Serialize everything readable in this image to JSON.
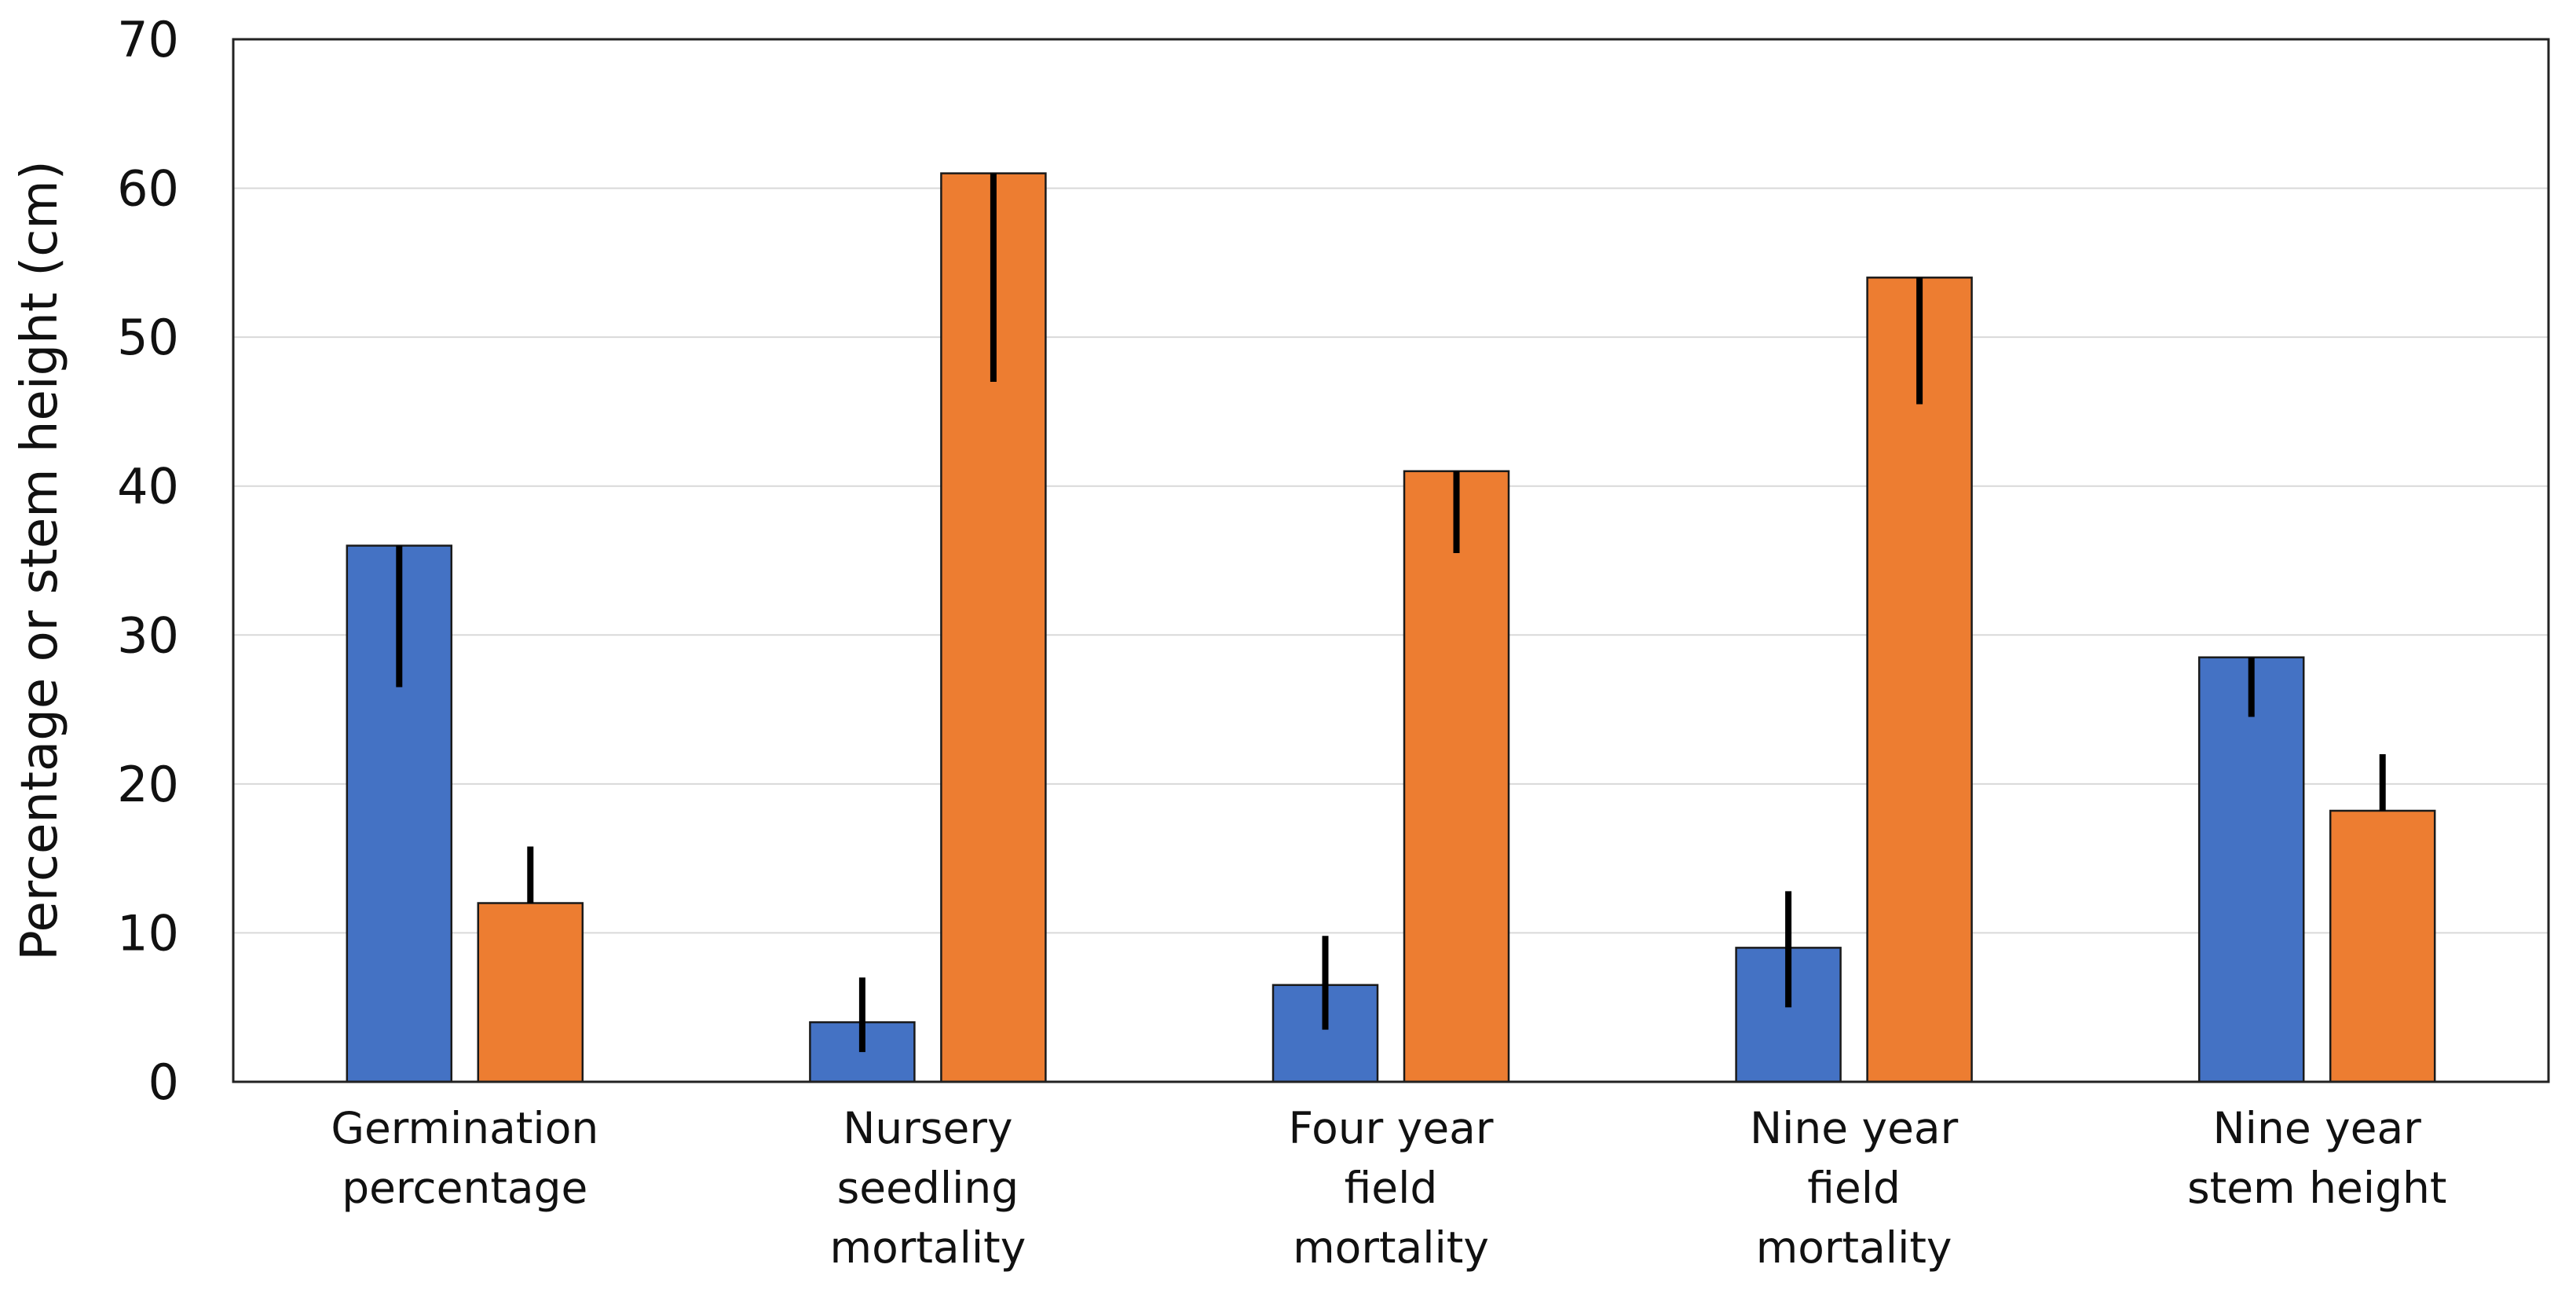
{
  "chart_data": {
    "type": "bar",
    "categories": [
      [
        "Germination",
        "percentage"
      ],
      [
        "Nursery",
        "seedling",
        "mortality"
      ],
      [
        "Four year",
        "field",
        "mortality"
      ],
      [
        "Nine year",
        "field",
        "mortality"
      ],
      [
        "Nine year",
        "stem height"
      ]
    ],
    "series": [
      {
        "color": "#4472C4",
        "values": [
          36,
          4,
          6.5,
          9,
          28.5
        ],
        "error_lower": [
          26.5,
          2,
          3.5,
          5,
          24.5
        ],
        "error_upper": [
          36,
          7,
          9.8,
          12.8,
          28.5
        ]
      },
      {
        "color": "#ED7D31",
        "values": [
          12,
          61,
          41,
          54,
          18.2
        ],
        "error_lower": [
          12,
          47,
          35.5,
          45.5,
          18.2
        ],
        "error_upper": [
          15.8,
          61,
          41,
          54,
          22
        ]
      }
    ],
    "ylabel": "Percentage or stem height (cm)",
    "ylim": [
      0,
      70
    ],
    "yticks": [
      0,
      10,
      20,
      30,
      40,
      50,
      60,
      70
    ],
    "grid": true,
    "legend": "none"
  }
}
